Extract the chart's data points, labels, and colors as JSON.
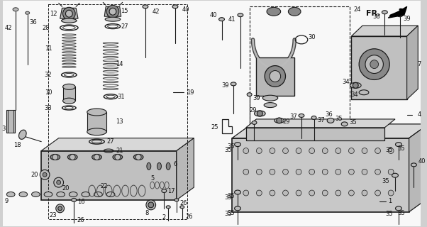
{
  "bg_color": "#e8e8e8",
  "line_color": "#2a2a2a",
  "gray_fill": "#888888",
  "light_gray": "#cccccc",
  "dark_gray": "#555555",
  "white": "#ffffff",
  "figsize": [
    6.02,
    3.2
  ],
  "dpi": 100
}
